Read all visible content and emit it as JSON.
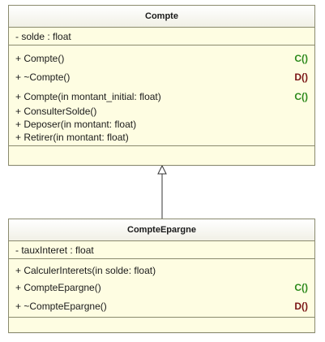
{
  "classes": {
    "compte": {
      "name": "Compte",
      "attributes": [
        "- solde : float"
      ],
      "operations": [
        {
          "text": "+ Compte()",
          "mark": "C()",
          "kind": "c"
        },
        {
          "text": "+ ~Compte()",
          "mark": "D()",
          "kind": "d"
        },
        {
          "text": "+ Compte(in montant_initial: float)",
          "mark": "C()",
          "kind": "c"
        },
        {
          "text": "+ ConsulterSolde()",
          "mark": "",
          "kind": ""
        },
        {
          "text": "+ Deposer(in montant: float)",
          "mark": "",
          "kind": ""
        },
        {
          "text": "+ Retirer(in montant: float)",
          "mark": "",
          "kind": ""
        }
      ]
    },
    "epargne": {
      "name": "CompteEpargne",
      "attributes": [
        "- tauxInteret : float"
      ],
      "operations": [
        {
          "text": "+ CalculerInterets(in solde: float)",
          "mark": "",
          "kind": ""
        },
        {
          "text": "+ CompteEpargne()",
          "mark": "C()",
          "kind": "c"
        },
        {
          "text": "+ ~CompteEpargne()",
          "mark": "D()",
          "kind": "d"
        }
      ]
    }
  },
  "relationship": {
    "type": "generalization",
    "from": "CompteEpargne",
    "to": "Compte"
  },
  "colors": {
    "class_fill": "#fefde2",
    "border": "#8a8a6e",
    "constructor": "#2d8a1c",
    "destructor": "#7a1414"
  }
}
